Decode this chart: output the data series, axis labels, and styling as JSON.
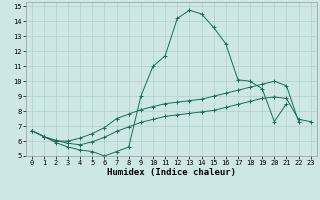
{
  "xlabel": "Humidex (Indice chaleur)",
  "background_color": "#cde8e4",
  "grid_color": "#b0d0cc",
  "line_color": "#1a6b5a",
  "xlim": [
    -0.5,
    23.5
  ],
  "ylim": [
    5,
    15.3
  ],
  "xticks": [
    0,
    1,
    2,
    3,
    4,
    5,
    6,
    7,
    8,
    9,
    10,
    11,
    12,
    13,
    14,
    15,
    16,
    17,
    18,
    19,
    20,
    21,
    22,
    23
  ],
  "yticks": [
    5,
    6,
    7,
    8,
    9,
    10,
    11,
    12,
    13,
    14,
    15
  ],
  "line1_x": [
    0,
    1,
    2,
    3,
    4,
    5,
    6,
    7,
    8,
    9,
    10,
    11,
    12,
    13,
    14,
    15,
    16,
    17,
    18,
    19,
    20,
    21
  ],
  "line1_y": [
    6.7,
    6.3,
    5.9,
    5.6,
    5.4,
    5.3,
    5.0,
    5.3,
    5.6,
    9.0,
    11.0,
    11.7,
    14.2,
    14.75,
    14.5,
    13.6,
    12.5,
    10.1,
    10.0,
    9.5,
    7.3,
    8.5
  ],
  "line2_x": [
    0,
    1,
    2,
    3,
    4,
    5,
    6,
    7,
    8,
    9,
    10,
    11,
    12,
    13,
    14,
    15,
    16,
    17,
    18,
    19,
    20,
    21,
    22
  ],
  "line2_y": [
    6.7,
    6.3,
    6.0,
    6.0,
    6.2,
    6.5,
    6.9,
    7.5,
    7.8,
    8.1,
    8.3,
    8.5,
    8.6,
    8.7,
    8.8,
    9.0,
    9.2,
    9.4,
    9.6,
    9.8,
    10.0,
    9.7,
    7.3
  ],
  "line3_x": [
    0,
    1,
    2,
    3,
    4,
    5,
    6,
    7,
    8,
    9,
    10,
    11,
    12,
    13,
    14,
    15,
    16,
    17,
    18,
    19,
    20,
    21,
    22,
    23
  ],
  "line3_y": [
    6.7,
    6.3,
    6.05,
    5.85,
    5.75,
    5.95,
    6.25,
    6.65,
    6.95,
    7.25,
    7.45,
    7.65,
    7.75,
    7.85,
    7.95,
    8.05,
    8.25,
    8.45,
    8.65,
    8.85,
    8.95,
    8.85,
    7.45,
    7.3
  ],
  "xlabel_fontsize": 6.5,
  "tick_fontsize": 5.0
}
